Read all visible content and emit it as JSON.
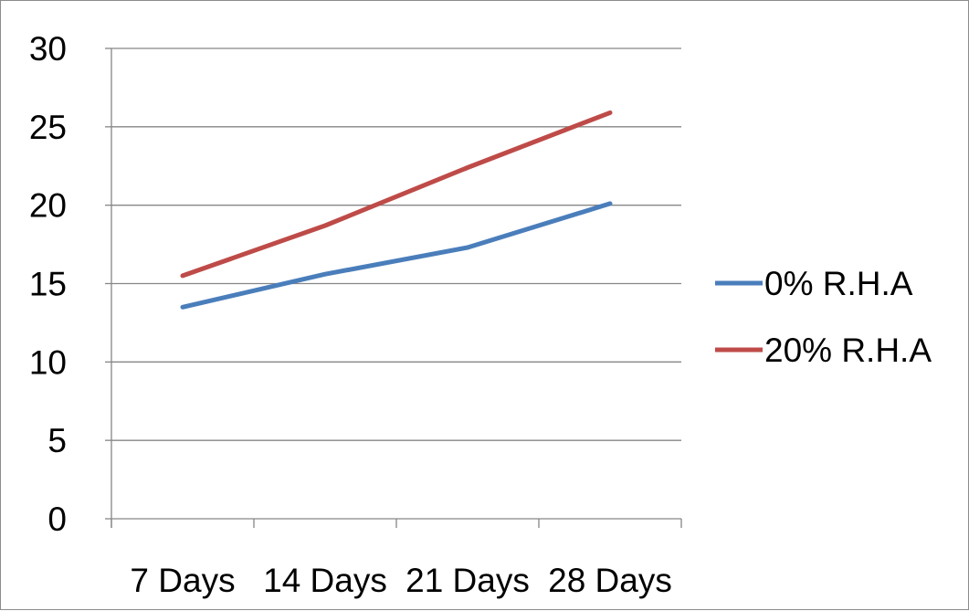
{
  "chart_data": {
    "type": "line",
    "title": "",
    "xlabel": "",
    "ylabel": "",
    "categories": [
      "7 Days",
      "14 Days",
      "21 Days",
      "28 Days"
    ],
    "ylim": [
      0,
      30
    ],
    "yticks": [
      "0",
      "5",
      "10",
      "15",
      "20",
      "25",
      "30"
    ],
    "grid": true,
    "legend_position": "right",
    "series": [
      {
        "name": "0% R.H.A",
        "values": [
          13.5,
          15.6,
          17.3,
          20.1
        ],
        "color": "#4a7ebb"
      },
      {
        "name": "20% R.H.A",
        "values": [
          15.5,
          18.7,
          22.4,
          25.9
        ],
        "color": "#be4b48"
      }
    ]
  }
}
